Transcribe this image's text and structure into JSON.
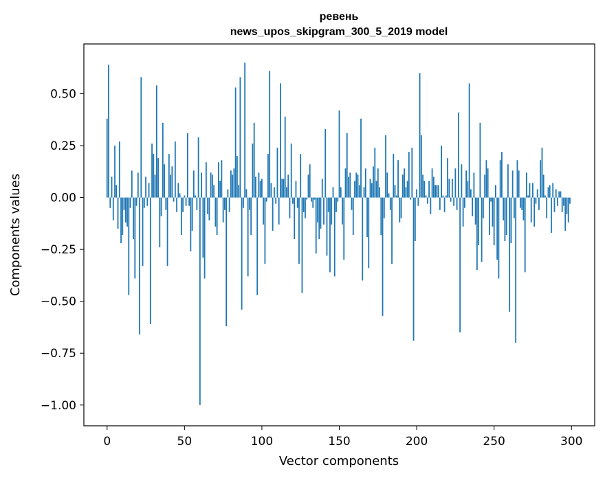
{
  "chart_data": {
    "type": "bar",
    "title": "ревень",
    "subtitle": "news_upos_skipgram_300_5_2019 model",
    "xlabel": "Vector components",
    "ylabel": "Components values",
    "xlim": [
      -15,
      315
    ],
    "ylim": [
      -1.1,
      0.74
    ],
    "xticks": [
      0,
      50,
      100,
      150,
      200,
      250,
      300
    ],
    "yticks": [
      -1.0,
      -0.75,
      -0.5,
      -0.25,
      0.0,
      0.25,
      0.5
    ],
    "ytick_labels": [
      "−1.00",
      "−0.75",
      "−0.50",
      "−0.25",
      "0.00",
      "0.25",
      "0.50"
    ],
    "bar_color": "#1f77b4",
    "values": [
      0.38,
      0.64,
      -0.05,
      0.1,
      -0.11,
      0.25,
      0.06,
      -0.15,
      0.27,
      -0.22,
      -0.18,
      -0.06,
      -0.12,
      -0.14,
      -0.47,
      -0.05,
      0.13,
      -0.2,
      -0.39,
      -0.04,
      0.12,
      -0.66,
      0.58,
      -0.33,
      -0.05,
      0.1,
      -0.04,
      0.07,
      -0.61,
      0.26,
      0.21,
      0.11,
      0.54,
      0.19,
      -0.24,
      -0.09,
      0.36,
      0.16,
      -0.06,
      -0.33,
      0.21,
      0.11,
      0.15,
      -0.02,
      0.27,
      -0.07,
      0.07,
      0.02,
      -0.18,
      -0.07,
      0.01,
      -0.04,
      0.31,
      -0.04,
      -0.26,
      -0.16,
      0.13,
      0.01,
      -0.06,
      0.29,
      -1.0,
      0.12,
      -0.29,
      -0.39,
      0.17,
      -0.08,
      -0.11,
      0.12,
      0.11,
      0.06,
      -0.14,
      -0.18,
      0.17,
      0.08,
      0.18,
      -0.12,
      -0.06,
      -0.62,
      0.04,
      -0.07,
      0.13,
      0.11,
      0.14,
      0.53,
      0.2,
      0.06,
      0.58,
      -0.54,
      -0.05,
      0.65,
      0.04,
      -0.38,
      -0.06,
      -0.18,
      0.26,
      0.36,
      0.1,
      -0.47,
      0.12,
      0.08,
      0.09,
      -0.13,
      -0.32,
      -0.02,
      0.21,
      0.61,
      0.07,
      -0.16,
      0.05,
      -0.03,
      0.24,
      -0.13,
      0.55,
      0.09,
      0.09,
      0.39,
      0.05,
      0.11,
      -0.1,
      0.26,
      -0.03,
      -0.2,
      0.08,
      -0.05,
      -0.32,
      0.21,
      -0.46,
      -0.07,
      -0.1,
      -0.01,
      0.11,
      0.16,
      -0.02,
      -0.05,
      -0.01,
      -0.27,
      -0.12,
      -0.2,
      -0.15,
      0.09,
      -0.13,
      0.33,
      -0.28,
      -0.07,
      -0.36,
      -0.13,
      0.05,
      -0.38,
      -0.07,
      -0.02,
      0.42,
      0.05,
      -0.13,
      -0.3,
      0.14,
      0.31,
      0.1,
      0.12,
      -0.06,
      -0.18,
      0.08,
      0.12,
      0.11,
      0.06,
      0.38,
      -0.4,
      0.05,
      0.14,
      -0.19,
      -0.34,
      0.09,
      0.07,
      0.15,
      0.24,
      0.08,
      0.14,
      0.05,
      -0.18,
      -0.57,
      -0.1,
      0.3,
      0.12,
      0.02,
      -0.06,
      -0.32,
      0.21,
      0.06,
      0.01,
      0.18,
      -0.12,
      -0.1,
      0.11,
      0.14,
      0.05,
      0.08,
      0.22,
      -0.01,
      0.24,
      -0.69,
      -0.21,
      0.04,
      -0.04,
      0.6,
      0.3,
      0.11,
      0.08,
      0.01,
      -0.03,
      0.08,
      -0.08,
      0.14,
      0.1,
      0.06,
      0.06,
      0.06,
      -0.06,
      0.25,
      0.01,
      -0.07,
      0.01,
      0.19,
      0.09,
      -0.02,
      0.09,
      -0.04,
      0.14,
      -0.06,
      0.41,
      -0.65,
      0.16,
      -0.14,
      -0.05,
      0.13,
      0.08,
      0.55,
      0.04,
      -0.09,
      0.12,
      -0.13,
      -0.35,
      -0.23,
      0.36,
      -0.31,
      -0.1,
      0.11,
      0.18,
      0.14,
      -0.18,
      -0.02,
      -0.14,
      -0.23,
      0.06,
      -0.3,
      -0.39,
      0.18,
      0.22,
      -0.11,
      -0.21,
      -0.18,
      0.16,
      -0.55,
      -0.22,
      0.13,
      -0.1,
      -0.7,
      0.18,
      0.13,
      -0.05,
      -0.06,
      -0.11,
      -0.36,
      0.12,
      0.01,
      0.07,
      -0.12,
      0.07,
      -0.14,
      -0.03,
      0.04,
      -0.06,
      0.18,
      0.24,
      0.11,
      0.01,
      -0.1,
      0.05,
      0.06,
      -0.17,
      0.07,
      -0.07,
      0.04,
      -0.04,
      0.03,
      0.03,
      -0.07,
      -0.04,
      -0.16,
      -0.08,
      -0.12,
      -0.03
    ]
  }
}
